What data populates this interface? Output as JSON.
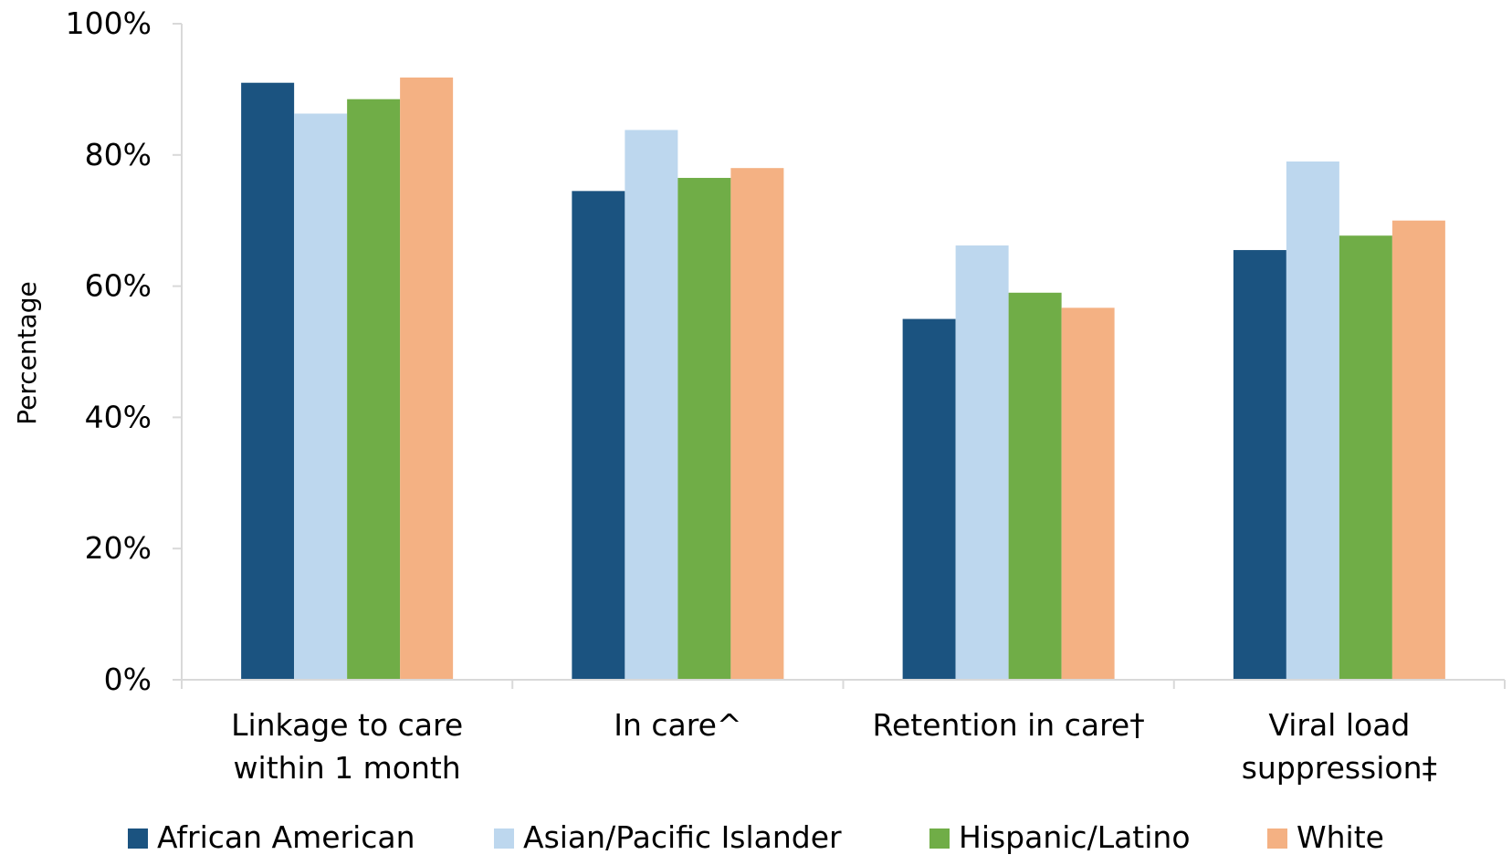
{
  "chart_data": {
    "type": "bar",
    "title": "",
    "xlabel": "",
    "ylabel": "Percentage",
    "ylim": [
      0,
      100
    ],
    "yticks": [
      "0%",
      "20%",
      "40%",
      "60%",
      "80%",
      "100%"
    ],
    "categories": [
      [
        "Linkage to care",
        "within 1 month"
      ],
      [
        "In care^"
      ],
      [
        "Retention in care†"
      ],
      [
        "Viral load",
        "suppression‡"
      ]
    ],
    "series": [
      {
        "name": "African American",
        "color": "#1b5380",
        "values": [
          91,
          74.5,
          55,
          65.5
        ]
      },
      {
        "name": "Asian/Pacific Islander",
        "color": "#bdd7ee",
        "values": [
          86.3,
          83.8,
          66.2,
          79
        ]
      },
      {
        "name": "Hispanic/Latino",
        "color": "#70ad47",
        "values": [
          88.5,
          76.5,
          59,
          67.7
        ]
      },
      {
        "name": "White",
        "color": "#f4b183",
        "values": [
          91.8,
          78,
          56.7,
          70
        ]
      }
    ],
    "grid": false,
    "legend_position": "bottom",
    "axis_color": "#d9d9d9"
  }
}
